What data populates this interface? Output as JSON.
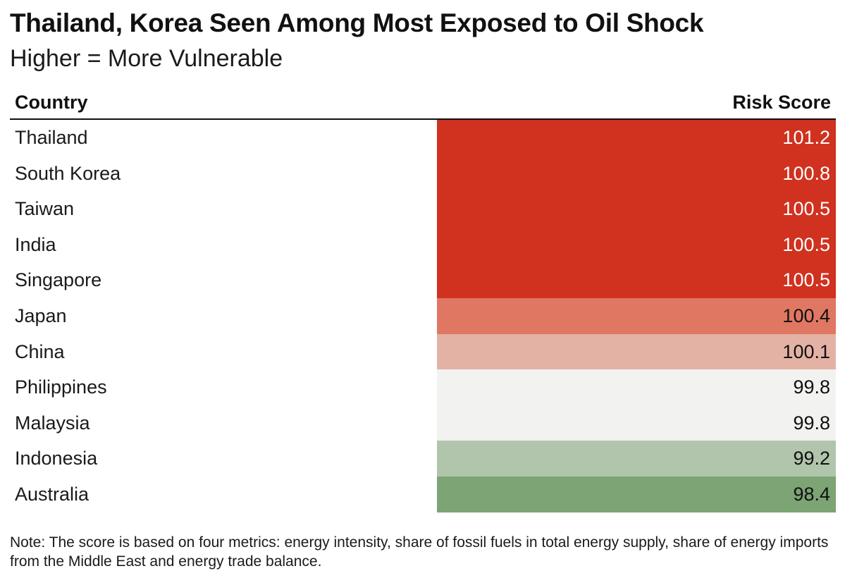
{
  "title": "Thailand, Korea Seen Among Most Exposed to Oil Shock",
  "subtitle": "Higher = More Vulnerable",
  "chart_data": {
    "type": "table",
    "title": "Thailand, Korea Seen Among Most Exposed to Oil Shock",
    "subtitle": "Higher = More Vulnerable",
    "columns": [
      "Country",
      "Risk Score"
    ],
    "rows": [
      {
        "country": "Thailand",
        "score": "101.2",
        "value": 101.2,
        "color": "#d0321f",
        "text_color": "#ffffff"
      },
      {
        "country": "South Korea",
        "score": "100.8",
        "value": 100.8,
        "color": "#d0321f",
        "text_color": "#ffffff"
      },
      {
        "country": "Taiwan",
        "score": "100.5",
        "value": 100.5,
        "color": "#d0321f",
        "text_color": "#ffffff"
      },
      {
        "country": "India",
        "score": "100.5",
        "value": 100.5,
        "color": "#d0321f",
        "text_color": "#ffffff"
      },
      {
        "country": "Singapore",
        "score": "100.5",
        "value": 100.5,
        "color": "#d0321f",
        "text_color": "#ffffff"
      },
      {
        "country": "Japan",
        "score": "100.4",
        "value": 100.4,
        "color": "#e07762",
        "text_color": "#111111"
      },
      {
        "country": "China",
        "score": "100.1",
        "value": 100.1,
        "color": "#e4b2a5",
        "text_color": "#111111"
      },
      {
        "country": "Philippines",
        "score": "99.8",
        "value": 99.8,
        "color": "#f2f2f1",
        "text_color": "#111111"
      },
      {
        "country": "Malaysia",
        "score": "99.8",
        "value": 99.8,
        "color": "#f2f2f1",
        "text_color": "#111111"
      },
      {
        "country": "Indonesia",
        "score": "99.2",
        "value": 99.2,
        "color": "#b0c5ac",
        "text_color": "#111111"
      },
      {
        "country": "Australia",
        "score": "98.4",
        "value": 98.4,
        "color": "#7ca474",
        "text_color": "#111111"
      }
    ]
  },
  "note": "Note: The score is based on four metrics: energy intensity, share of fossil fuels in total energy supply, share of energy imports from the Middle East and energy trade balance."
}
